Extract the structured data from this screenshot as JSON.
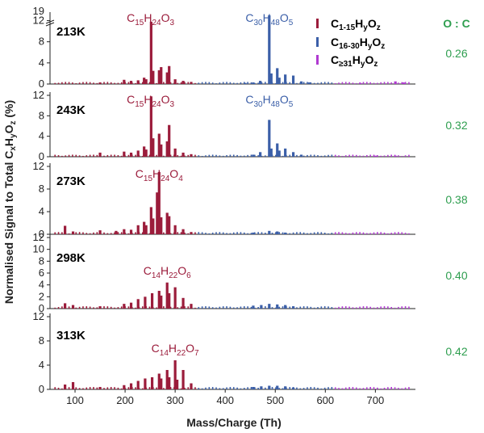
{
  "colors": {
    "series_c1_15": "#9b1c3b",
    "series_c16_30": "#3b5fa8",
    "series_c31": "#b03ad1",
    "oc": "#2e9e4f",
    "axis": "#222222"
  },
  "legend": {
    "entries": [
      {
        "base": "C",
        "sub": "1-15",
        "mid": "H",
        "sub2": "y",
        "end": "O",
        "sub3": "z",
        "color": "#9b1c3b"
      },
      {
        "base": "C",
        "sub": "16-30",
        "mid": "H",
        "sub2": "y",
        "end": "O",
        "sub3": "z",
        "color": "#3b5fa8"
      },
      {
        "base": "C",
        "sub": "≥31",
        "mid": "H",
        "sub2": "y",
        "end": "O",
        "sub3": "z",
        "color": "#b03ad1"
      }
    ]
  },
  "oc_header": "O : C",
  "x_axis_title": "Mass/Charge (Th)",
  "y_axis_title": {
    "pre": "Normalised Signal to Total C",
    "s1": "x",
    "mid": "H",
    "s2": "y",
    "end": "O",
    "s3": "z",
    "post": " (%)"
  },
  "chart_data": {
    "type": "bar",
    "xlim": [
      50,
      780
    ],
    "xticks": [
      100,
      200,
      300,
      400,
      500,
      600,
      700
    ],
    "panels": [
      {
        "temperature": "213K",
        "oc_ratio": "0.26",
        "yticks": [
          0,
          4,
          8,
          12
        ],
        "ylim": [
          0,
          13
        ],
        "broken_axis_top_label": "19",
        "annotations": [
          {
            "text": [
              "C",
              "15",
              "H",
              "24",
              "O",
              "3"
            ],
            "x": 254,
            "series": "C1-15"
          },
          {
            "text": [
              "C",
              "30",
              "H",
              "48",
              "O",
              "5"
            ],
            "x": 488,
            "series": "C16-30"
          }
        ],
        "peaks": [
          {
            "mz": 150,
            "v": 0.3,
            "s": 0
          },
          {
            "mz": 198,
            "v": 0.8,
            "s": 0
          },
          {
            "mz": 212,
            "v": 0.6,
            "s": 0
          },
          {
            "mz": 226,
            "v": 0.7,
            "s": 0
          },
          {
            "mz": 238,
            "v": 1.2,
            "s": 0
          },
          {
            "mz": 242,
            "v": 0.9,
            "s": 0
          },
          {
            "mz": 252,
            "v": 11.8,
            "s": 0
          },
          {
            "mz": 256,
            "v": 2.5,
            "s": 0
          },
          {
            "mz": 268,
            "v": 2.6,
            "s": 0
          },
          {
            "mz": 272,
            "v": 3.2,
            "s": 0
          },
          {
            "mz": 284,
            "v": 2.2,
            "s": 0
          },
          {
            "mz": 288,
            "v": 3.4,
            "s": 0
          },
          {
            "mz": 300,
            "v": 0.9,
            "s": 0
          },
          {
            "mz": 316,
            "v": 0.6,
            "s": 0
          },
          {
            "mz": 332,
            "v": 0.4,
            "s": 0
          },
          {
            "mz": 440,
            "v": 0.2,
            "s": 1
          },
          {
            "mz": 456,
            "v": 0.3,
            "s": 1
          },
          {
            "mz": 470,
            "v": 0.6,
            "s": 1
          },
          {
            "mz": 488,
            "v": 19.0,
            "s": 1
          },
          {
            "mz": 492,
            "v": 2.0,
            "s": 1
          },
          {
            "mz": 504,
            "v": 3.0,
            "s": 1
          },
          {
            "mz": 508,
            "v": 1.2,
            "s": 1
          },
          {
            "mz": 520,
            "v": 1.8,
            "s": 1
          },
          {
            "mz": 536,
            "v": 1.6,
            "s": 1
          },
          {
            "mz": 552,
            "v": 0.5,
            "s": 1
          },
          {
            "mz": 568,
            "v": 0.3,
            "s": 1
          },
          {
            "mz": 670,
            "v": 0.2,
            "s": 2
          },
          {
            "mz": 740,
            "v": 0.5,
            "s": 2
          },
          {
            "mz": 756,
            "v": 0.3,
            "s": 2
          }
        ]
      },
      {
        "temperature": "243K",
        "oc_ratio": "0.32",
        "yticks": [
          0,
          4,
          8,
          12
        ],
        "ylim": [
          0,
          12
        ],
        "annotations": [
          {
            "text": [
              "C",
              "15",
              "H",
              "24",
              "O",
              "3"
            ],
            "x": 254,
            "series": "C1-15"
          },
          {
            "text": [
              "C",
              "30",
              "H",
              "48",
              "O",
              "5"
            ],
            "x": 488,
            "series": "C16-30"
          }
        ],
        "peaks": [
          {
            "mz": 150,
            "v": 0.8,
            "s": 0
          },
          {
            "mz": 198,
            "v": 1.0,
            "s": 0
          },
          {
            "mz": 212,
            "v": 0.8,
            "s": 0
          },
          {
            "mz": 226,
            "v": 1.2,
            "s": 0
          },
          {
            "mz": 238,
            "v": 2.0,
            "s": 0
          },
          {
            "mz": 242,
            "v": 1.4,
            "s": 0
          },
          {
            "mz": 252,
            "v": 11.8,
            "s": 0
          },
          {
            "mz": 256,
            "v": 3.6,
            "s": 0
          },
          {
            "mz": 268,
            "v": 4.5,
            "s": 0
          },
          {
            "mz": 272,
            "v": 2.4,
            "s": 0
          },
          {
            "mz": 284,
            "v": 3.0,
            "s": 0
          },
          {
            "mz": 288,
            "v": 6.2,
            "s": 0
          },
          {
            "mz": 300,
            "v": 1.6,
            "s": 0
          },
          {
            "mz": 316,
            "v": 0.8,
            "s": 0
          },
          {
            "mz": 332,
            "v": 0.5,
            "s": 0
          },
          {
            "mz": 456,
            "v": 0.4,
            "s": 1
          },
          {
            "mz": 470,
            "v": 0.9,
            "s": 1
          },
          {
            "mz": 488,
            "v": 7.2,
            "s": 1
          },
          {
            "mz": 492,
            "v": 1.6,
            "s": 1
          },
          {
            "mz": 504,
            "v": 2.6,
            "s": 1
          },
          {
            "mz": 508,
            "v": 1.2,
            "s": 1
          },
          {
            "mz": 520,
            "v": 1.6,
            "s": 1
          },
          {
            "mz": 536,
            "v": 0.9,
            "s": 1
          },
          {
            "mz": 552,
            "v": 0.4,
            "s": 1
          },
          {
            "mz": 700,
            "v": 0.2,
            "s": 2
          },
          {
            "mz": 740,
            "v": 0.2,
            "s": 2
          }
        ]
      },
      {
        "temperature": "273K",
        "oc_ratio": "0.38",
        "yticks": [
          0,
          4,
          8,
          12
        ],
        "ylim": [
          0,
          12
        ],
        "annotations": [
          {
            "text": [
              "C",
              "15",
              "H",
              "24",
              "O",
              "4"
            ],
            "x": 268,
            "series": "C1-15"
          }
        ],
        "peaks": [
          {
            "mz": 80,
            "v": 1.5,
            "s": 0
          },
          {
            "mz": 96,
            "v": 0.5,
            "s": 0
          },
          {
            "mz": 150,
            "v": 0.7,
            "s": 0
          },
          {
            "mz": 182,
            "v": 0.6,
            "s": 0
          },
          {
            "mz": 198,
            "v": 0.9,
            "s": 0
          },
          {
            "mz": 212,
            "v": 0.8,
            "s": 0
          },
          {
            "mz": 226,
            "v": 1.6,
            "s": 0
          },
          {
            "mz": 238,
            "v": 2.2,
            "s": 0
          },
          {
            "mz": 242,
            "v": 1.6,
            "s": 0
          },
          {
            "mz": 252,
            "v": 4.8,
            "s": 0
          },
          {
            "mz": 256,
            "v": 2.8,
            "s": 0
          },
          {
            "mz": 264,
            "v": 7.4,
            "s": 0
          },
          {
            "mz": 268,
            "v": 11.0,
            "s": 0
          },
          {
            "mz": 272,
            "v": 3.0,
            "s": 0
          },
          {
            "mz": 284,
            "v": 3.8,
            "s": 0
          },
          {
            "mz": 288,
            "v": 3.2,
            "s": 0
          },
          {
            "mz": 300,
            "v": 1.6,
            "s": 0
          },
          {
            "mz": 316,
            "v": 0.9,
            "s": 0
          },
          {
            "mz": 332,
            "v": 0.4,
            "s": 0
          },
          {
            "mz": 456,
            "v": 0.3,
            "s": 1
          },
          {
            "mz": 488,
            "v": 0.6,
            "s": 1
          },
          {
            "mz": 504,
            "v": 0.5,
            "s": 1
          },
          {
            "mz": 520,
            "v": 0.3,
            "s": 1
          }
        ]
      },
      {
        "temperature": "298K",
        "oc_ratio": "0.40",
        "yticks": [
          0,
          2,
          4,
          6,
          8,
          10,
          12
        ],
        "ylim": [
          0,
          12
        ],
        "annotations": [
          {
            "text": [
              "C",
              "14",
              "H",
              "22",
              "O",
              "6"
            ],
            "x": 284,
            "series": "C1-15"
          }
        ],
        "peaks": [
          {
            "mz": 80,
            "v": 0.9,
            "s": 0
          },
          {
            "mz": 96,
            "v": 0.6,
            "s": 0
          },
          {
            "mz": 150,
            "v": 0.4,
            "s": 0
          },
          {
            "mz": 198,
            "v": 0.8,
            "s": 0
          },
          {
            "mz": 212,
            "v": 1.0,
            "s": 0
          },
          {
            "mz": 226,
            "v": 1.6,
            "s": 0
          },
          {
            "mz": 240,
            "v": 2.0,
            "s": 0
          },
          {
            "mz": 254,
            "v": 2.6,
            "s": 0
          },
          {
            "mz": 268,
            "v": 3.0,
            "s": 0
          },
          {
            "mz": 272,
            "v": 2.2,
            "s": 0
          },
          {
            "mz": 284,
            "v": 4.4,
            "s": 0
          },
          {
            "mz": 288,
            "v": 2.6,
            "s": 0
          },
          {
            "mz": 300,
            "v": 3.6,
            "s": 0
          },
          {
            "mz": 316,
            "v": 1.8,
            "s": 0
          },
          {
            "mz": 332,
            "v": 0.8,
            "s": 0
          },
          {
            "mz": 456,
            "v": 0.5,
            "s": 1
          },
          {
            "mz": 472,
            "v": 0.6,
            "s": 1
          },
          {
            "mz": 488,
            "v": 0.8,
            "s": 1
          },
          {
            "mz": 504,
            "v": 0.7,
            "s": 1
          },
          {
            "mz": 520,
            "v": 0.6,
            "s": 1
          },
          {
            "mz": 536,
            "v": 0.4,
            "s": 1
          }
        ]
      },
      {
        "temperature": "313K",
        "oc_ratio": "0.42",
        "yticks": [
          0,
          4,
          8,
          12
        ],
        "ylim": [
          0,
          12
        ],
        "annotations": [
          {
            "text": [
              "C",
              "14",
              "H",
              "22",
              "O",
              "7"
            ],
            "x": 300,
            "series": "C1-15"
          }
        ],
        "peaks": [
          {
            "mz": 80,
            "v": 0.8,
            "s": 0
          },
          {
            "mz": 96,
            "v": 1.2,
            "s": 0
          },
          {
            "mz": 150,
            "v": 0.4,
            "s": 0
          },
          {
            "mz": 198,
            "v": 0.7,
            "s": 0
          },
          {
            "mz": 212,
            "v": 1.0,
            "s": 0
          },
          {
            "mz": 226,
            "v": 1.4,
            "s": 0
          },
          {
            "mz": 240,
            "v": 1.8,
            "s": 0
          },
          {
            "mz": 254,
            "v": 2.0,
            "s": 0
          },
          {
            "mz": 268,
            "v": 2.6,
            "s": 0
          },
          {
            "mz": 272,
            "v": 1.8,
            "s": 0
          },
          {
            "mz": 284,
            "v": 3.2,
            "s": 0
          },
          {
            "mz": 288,
            "v": 2.0,
            "s": 0
          },
          {
            "mz": 300,
            "v": 4.8,
            "s": 0
          },
          {
            "mz": 304,
            "v": 1.6,
            "s": 0
          },
          {
            "mz": 316,
            "v": 3.2,
            "s": 0
          },
          {
            "mz": 332,
            "v": 1.0,
            "s": 0
          },
          {
            "mz": 456,
            "v": 0.4,
            "s": 1
          },
          {
            "mz": 472,
            "v": 0.5,
            "s": 1
          },
          {
            "mz": 488,
            "v": 0.6,
            "s": 1
          },
          {
            "mz": 504,
            "v": 0.6,
            "s": 1
          },
          {
            "mz": 520,
            "v": 0.5,
            "s": 1
          },
          {
            "mz": 536,
            "v": 0.3,
            "s": 1
          }
        ]
      }
    ]
  }
}
